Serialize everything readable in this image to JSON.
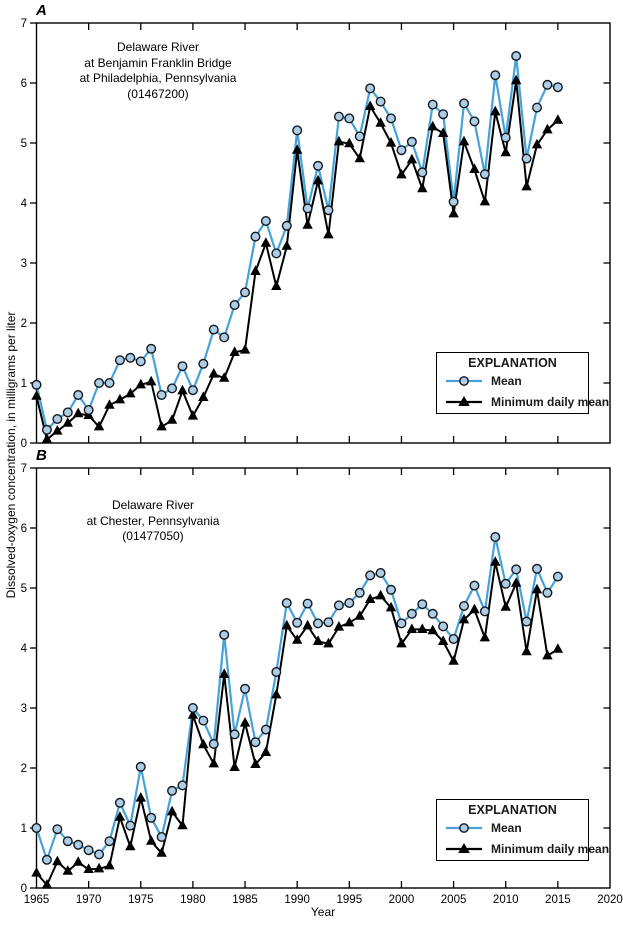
{
  "figure_axes": {
    "y_label": "Dissolved-oxygen concentration, in milligrams per liter",
    "x_label": "Year"
  },
  "legend": {
    "title": "EXPLANATION",
    "entries": [
      {
        "label": "Mean",
        "marker": "circle"
      },
      {
        "label": "Minimum daily mean",
        "marker": "triangle"
      }
    ]
  },
  "colors": {
    "mean_line": "#46a2d7",
    "mean_marker_fill": "#aecde5",
    "mean_marker_stroke": "#10181f",
    "min_line": "#000000",
    "min_marker_fill": "#000000",
    "axis": "#000000"
  },
  "chart_data": [
    {
      "panel": "A",
      "type": "line",
      "title_lines": [
        "Delaware River",
        "at Benjamin Franklin Bridge",
        "at Philadelphia, Pennsylvania",
        "(01467200)"
      ],
      "xlabel": "",
      "ylabel": "Dissolved-oxygen concentration, in milligrams per liter",
      "xlim": [
        1965,
        2020
      ],
      "ylim": [
        0,
        7
      ],
      "xticks": [
        1965,
        1970,
        1975,
        1980,
        1985,
        1990,
        1995,
        2000,
        2005,
        2010,
        2015,
        2020
      ],
      "yticks": [
        0,
        1,
        2,
        3,
        4,
        5,
        6,
        7
      ],
      "x": [
        1965,
        1966,
        1967,
        1968,
        1969,
        1970,
        1971,
        1972,
        1973,
        1974,
        1975,
        1976,
        1977,
        1978,
        1979,
        1980,
        1981,
        1982,
        1983,
        1984,
        1985,
        1986,
        1987,
        1988,
        1989,
        1990,
        1991,
        1992,
        1993,
        1994,
        1995,
        1996,
        1997,
        1998,
        1999,
        2000,
        2001,
        2002,
        2003,
        2004,
        2005,
        2006,
        2007,
        2008,
        2009,
        2010,
        2011,
        2012,
        2013,
        2014,
        2015
      ],
      "series": [
        {
          "name": "Mean",
          "values": [
            0.97,
            0.22,
            0.4,
            0.51,
            0.8,
            0.55,
            1.0,
            1.0,
            1.38,
            1.42,
            1.36,
            1.57,
            0.8,
            0.91,
            1.28,
            0.88,
            1.32,
            1.89,
            1.76,
            2.3,
            2.51,
            3.44,
            3.7,
            3.16,
            3.62,
            5.21,
            3.91,
            4.62,
            3.88,
            5.44,
            5.41,
            5.11,
            5.91,
            5.69,
            5.41,
            4.88,
            5.02,
            4.51,
            5.64,
            5.48,
            4.02,
            5.66,
            5.36,
            4.48,
            6.13,
            5.09,
            6.45,
            4.74,
            5.59,
            5.97,
            5.93
          ]
        },
        {
          "name": "Minimum daily mean",
          "values": [
            0.78,
            0.06,
            0.2,
            0.33,
            0.49,
            0.46,
            0.27,
            0.63,
            0.72,
            0.82,
            0.97,
            1.02,
            0.27,
            0.38,
            0.87,
            0.45,
            0.76,
            1.15,
            1.08,
            1.51,
            1.55,
            2.86,
            3.33,
            2.61,
            3.28,
            4.88,
            3.63,
            4.37,
            3.47,
            5.02,
            4.99,
            4.74,
            5.61,
            5.33,
            5.0,
            4.47,
            4.72,
            4.24,
            5.27,
            5.16,
            3.82,
            5.02,
            4.56,
            4.02,
            5.52,
            4.84,
            6.04,
            4.27,
            4.97,
            5.22,
            5.38
          ]
        }
      ]
    },
    {
      "panel": "B",
      "type": "line",
      "title_lines": [
        "Delaware River",
        "at Chester, Pennsylvania",
        "(01477050)"
      ],
      "xlabel": "Year",
      "ylabel": "Dissolved-oxygen concentration, in milligrams per liter",
      "xlim": [
        1965,
        2020
      ],
      "ylim": [
        0,
        7
      ],
      "xticks": [
        1965,
        1970,
        1975,
        1980,
        1985,
        1990,
        1995,
        2000,
        2005,
        2010,
        2015,
        2020
      ],
      "yticks": [
        0,
        1,
        2,
        3,
        4,
        5,
        6,
        7
      ],
      "x": [
        1965,
        1966,
        1967,
        1968,
        1969,
        1970,
        1971,
        1972,
        1973,
        1974,
        1975,
        1976,
        1977,
        1978,
        1979,
        1980,
        1981,
        1982,
        1983,
        1984,
        1985,
        1986,
        1987,
        1988,
        1989,
        1990,
        1991,
        1992,
        1993,
        1994,
        1995,
        1996,
        1997,
        1998,
        1999,
        2000,
        2001,
        2002,
        2003,
        2004,
        2005,
        2006,
        2007,
        2008,
        2009,
        2010,
        2011,
        2012,
        2013,
        2014,
        2015
      ],
      "series": [
        {
          "name": "Mean",
          "values": [
            1.0,
            0.47,
            0.98,
            0.78,
            0.72,
            0.63,
            0.56,
            0.78,
            1.42,
            1.04,
            2.02,
            1.17,
            0.85,
            1.62,
            1.71,
            3.0,
            2.79,
            2.4,
            4.22,
            2.56,
            3.32,
            2.43,
            2.64,
            3.6,
            4.75,
            4.42,
            4.74,
            4.41,
            4.43,
            4.71,
            4.75,
            4.92,
            5.21,
            5.25,
            4.97,
            4.41,
            4.57,
            4.73,
            4.57,
            4.36,
            4.15,
            4.7,
            5.04,
            4.61,
            5.85,
            5.07,
            5.31,
            4.44,
            5.32,
            4.92,
            5.19
          ]
        },
        {
          "name": "Minimum daily mean",
          "values": [
            0.25,
            0.05,
            0.44,
            0.28,
            0.43,
            0.31,
            0.32,
            0.37,
            1.18,
            0.69,
            1.5,
            0.78,
            0.58,
            1.27,
            1.04,
            2.88,
            2.39,
            2.07,
            3.56,
            2.01,
            2.75,
            2.06,
            2.26,
            3.22,
            4.37,
            4.13,
            4.37,
            4.11,
            4.07,
            4.35,
            4.42,
            4.53,
            4.81,
            4.87,
            4.67,
            4.07,
            4.31,
            4.31,
            4.29,
            4.11,
            3.78,
            4.47,
            4.64,
            4.17,
            5.43,
            4.68,
            5.08,
            3.94,
            4.97,
            3.87,
            3.98
          ]
        }
      ]
    }
  ]
}
